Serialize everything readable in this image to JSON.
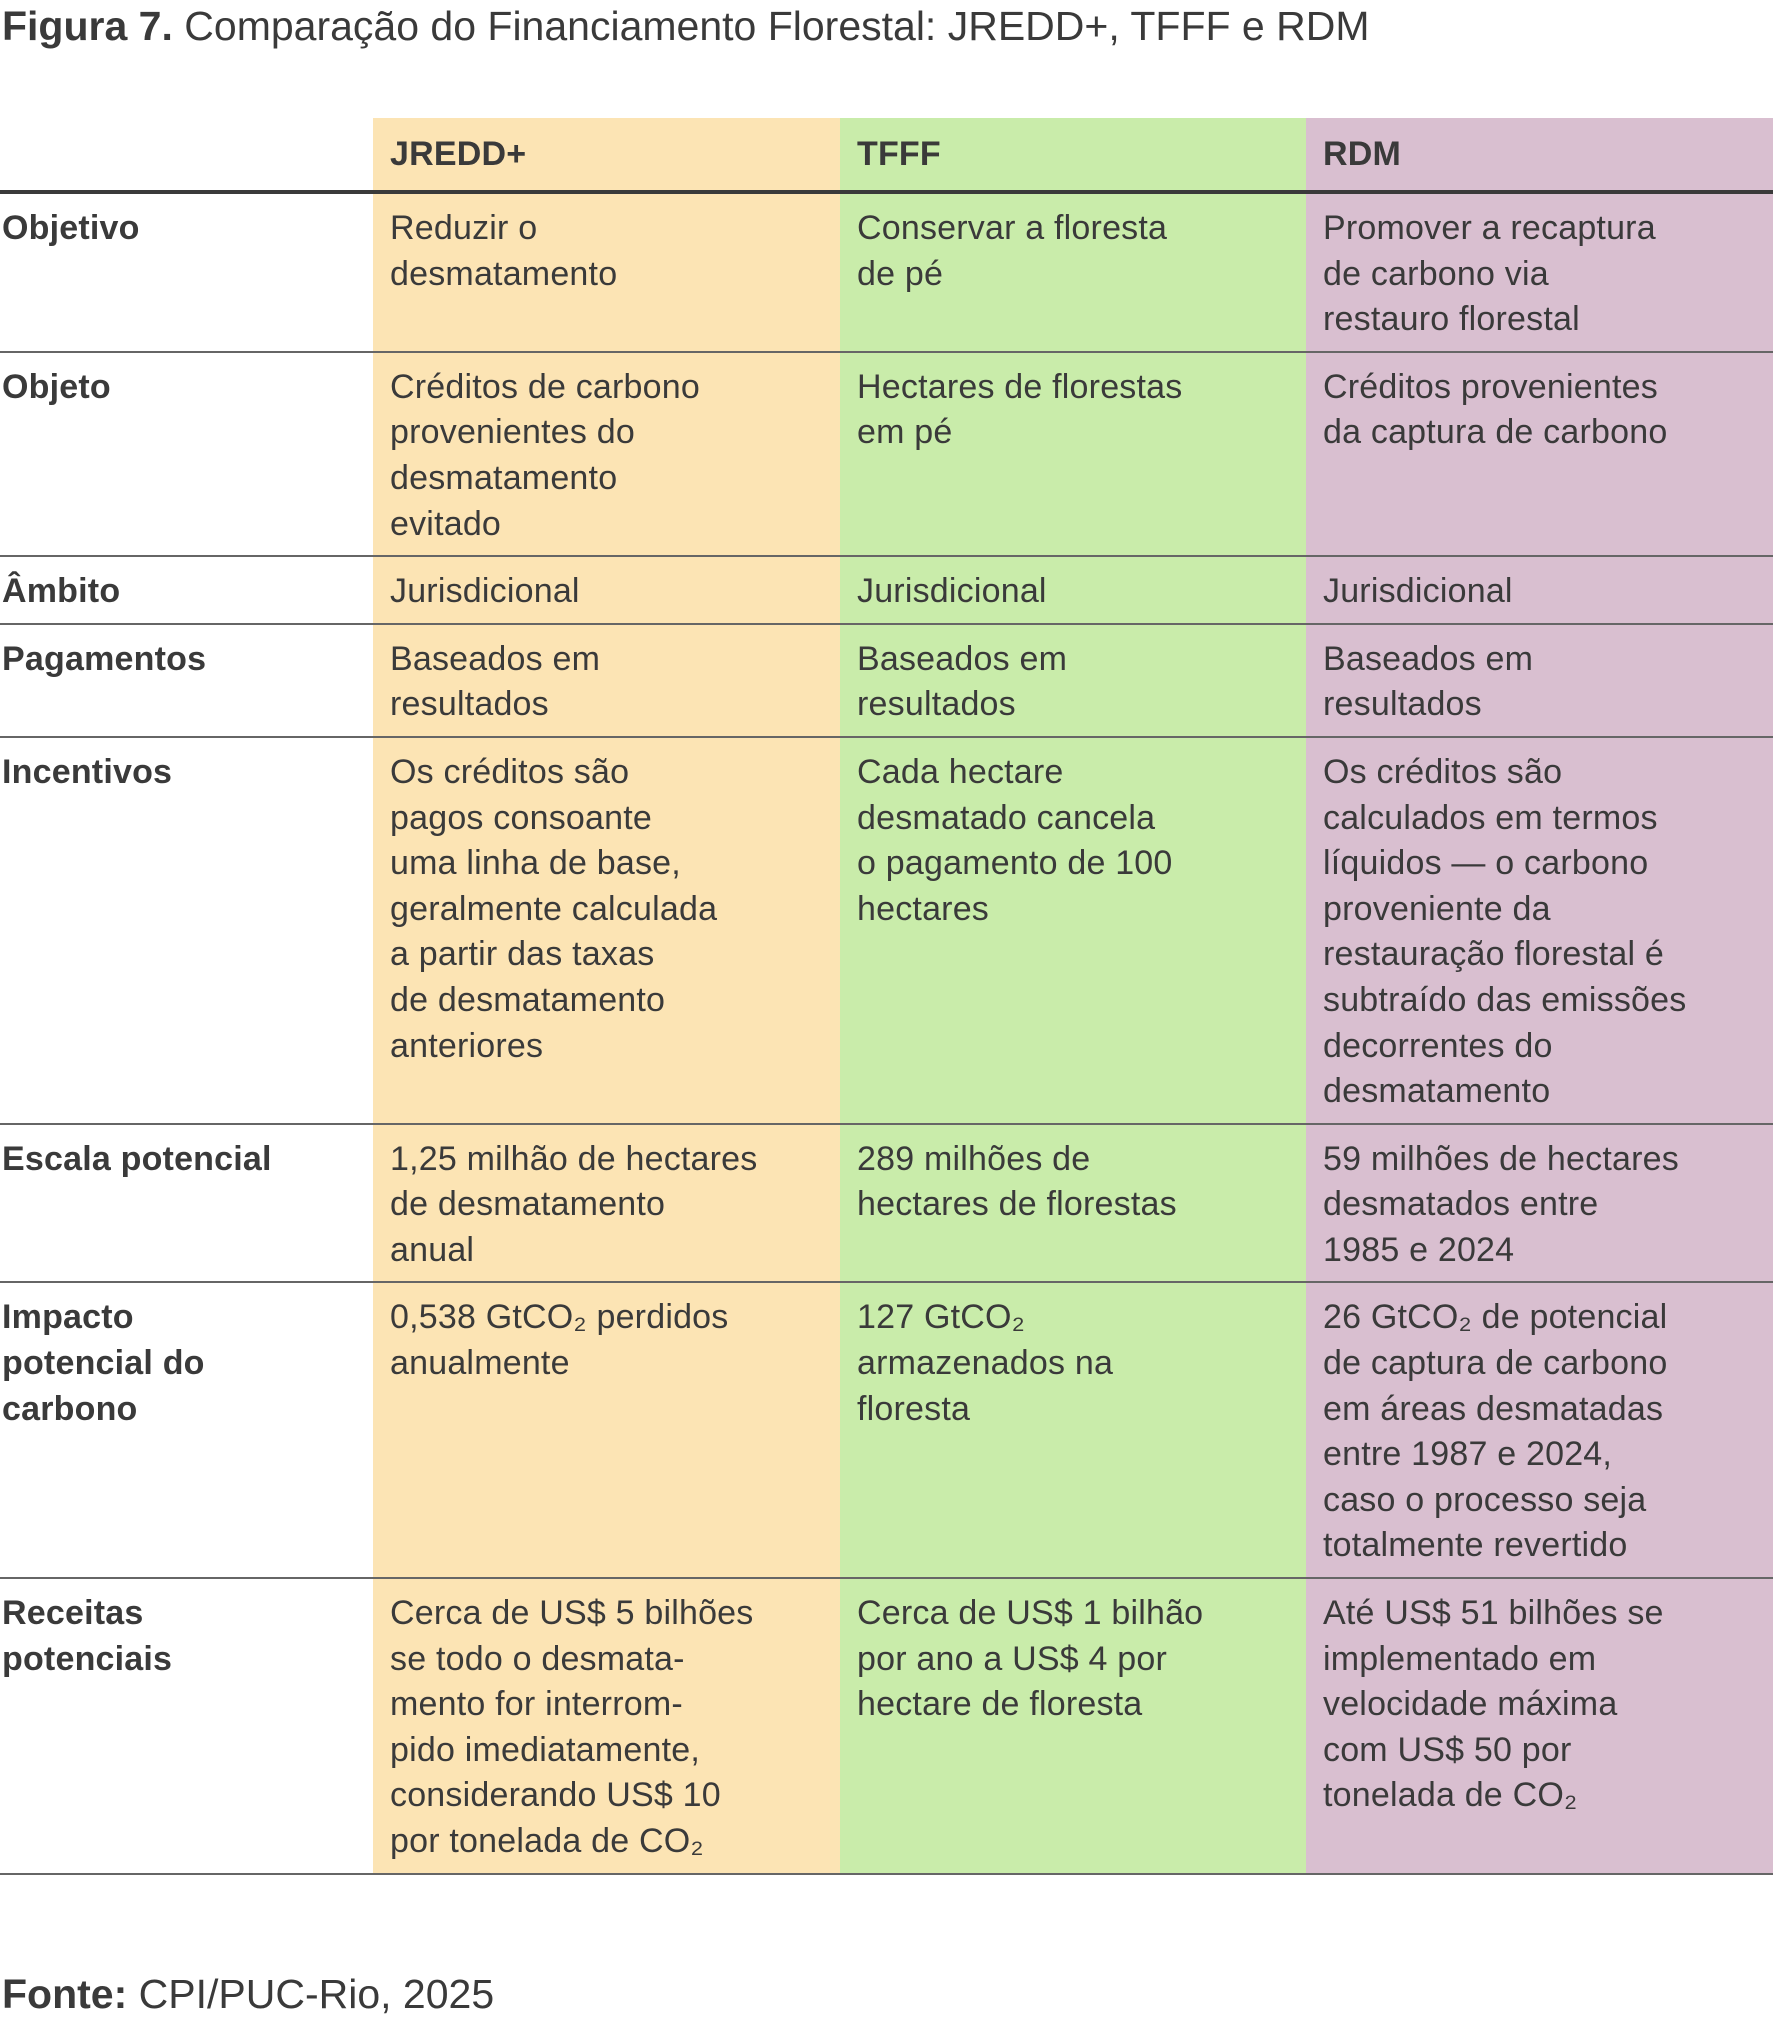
{
  "title": {
    "prefix": "Figura 7.",
    "text": "Comparação do Financiamento Florestal: JREDD+, TFFF e RDM"
  },
  "colors": {
    "jredd": "#fce4b4",
    "tfff": "#c9ecaa",
    "rdm": "#d9bfd0",
    "text": "#3a3a3a"
  },
  "columns": [
    "JREDD+",
    "TFFF",
    "RDM"
  ],
  "rows": [
    {
      "label": "Objetivo",
      "cells": [
        "Reduzir o\ndesmatamento",
        "Conservar a floresta\nde pé",
        "Promover a recaptura\nde carbono via\nrestauro florestal"
      ]
    },
    {
      "label": "Objeto",
      "cells": [
        "Créditos de carbono\nprovenientes do\ndesmatamento\nevitado",
        "Hectares de florestas\nem pé",
        "Créditos provenientes\nda captura de carbono"
      ]
    },
    {
      "label": "Âmbito",
      "cells": [
        "Jurisdicional",
        "Jurisdicional",
        "Jurisdicional"
      ]
    },
    {
      "label": "Pagamentos",
      "cells": [
        "Baseados em\nresultados",
        "Baseados em\nresultados",
        "Baseados em\nresultados"
      ]
    },
    {
      "label": "Incentivos",
      "cells": [
        "Os créditos são\npagos consoante\numa linha de base,\ngeralmente calculada\na partir das taxas\nde desmatamento\nanteriores",
        "Cada hectare\ndesmatado cancela\no pagamento de 100\nhectares",
        "Os créditos são\ncalculados em termos\nlíquidos — o carbono\nproveniente da\nrestauração florestal é\nsubtraído das emissões\ndecorrentes do\ndesmatamento"
      ]
    },
    {
      "label": "Escala potencial",
      "cells": [
        "1,25 milhão de hectares\nde desmatamento\nanual",
        "289 milhões de\nhectares de florestas",
        "59 milhões de hectares\ndesmatados entre\n1985 e 2024"
      ]
    },
    {
      "label": "Impacto\npotencial do\ncarbono",
      "cells": [
        "0,538 GtCO₂ perdidos\nanualmente",
        "127 GtCO₂\narmazenados na\nfloresta",
        "26 GtCO₂ de potencial\nde captura de carbono\nem áreas desmatadas\nentre 1987 e 2024,\ncaso o processo seja\ntotalmente revertido"
      ]
    },
    {
      "label": "Receitas\npotenciais",
      "cells": [
        "Cerca de US$ 5 bilhões\nse todo o desmata-\nmento for interrom-\npido imediatamente,\nconsiderando US$ 10\npor tonelada de CO₂",
        "Cerca de US$ 1 bilhão\npor ano a US$ 4 por\nhectare de floresta",
        "Até US$ 51 bilhões se\nimplementado em\nvelocidade máxima\ncom US$ 50 por\ntonelada de CO₂"
      ]
    }
  ],
  "source": {
    "label": "Fonte:",
    "text": "CPI/PUC-Rio, 2025"
  }
}
